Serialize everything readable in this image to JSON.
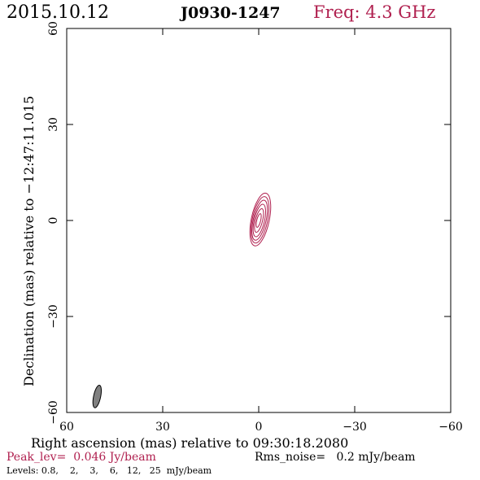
{
  "header": {
    "date": "2015.10.12",
    "source": "J0930-1247",
    "freq": "Freq: 4.3 GHz"
  },
  "colors": {
    "accent": "#b0204f",
    "axis": "#000000",
    "beam_fill": "#808080"
  },
  "chart_data": {
    "type": "contour",
    "xlabel": "Right ascension (mas) relative to 09:30:18.2080",
    "ylabel": "Declination (mas) relative to −12:47:11.015",
    "xlim": [
      60,
      -60
    ],
    "ylim": [
      -60,
      60
    ],
    "x_ticks": [
      60,
      30,
      0,
      -30,
      -60
    ],
    "y_ticks": [
      -60,
      -30,
      0,
      30,
      60
    ],
    "x_tick_labels": [
      "60",
      "30",
      "0",
      "−30",
      "−60"
    ],
    "y_tick_labels": [
      "−60",
      "−30",
      "0",
      "30",
      "60"
    ],
    "grid": false,
    "contour_levels_mJy": [
      0.8,
      2,
      3,
      6,
      12,
      25
    ],
    "contours": [
      {
        "level": 0.8,
        "cx": -0.5,
        "cy": 0.3,
        "rx": 2.8,
        "ry": 8.4,
        "angle_deg": -12
      },
      {
        "level": 2,
        "cx": -0.4,
        "cy": 0.2,
        "rx": 2.4,
        "ry": 7.4,
        "angle_deg": -12
      },
      {
        "level": 3,
        "cx": -0.3,
        "cy": 0.1,
        "rx": 2.0,
        "ry": 6.4,
        "angle_deg": -13
      },
      {
        "level": 6,
        "cx": -0.2,
        "cy": 0.0,
        "rx": 1.6,
        "ry": 5.2,
        "angle_deg": -13
      },
      {
        "level": 12,
        "cx": -0.1,
        "cy": 0.0,
        "rx": 1.1,
        "ry": 3.8,
        "angle_deg": -14
      },
      {
        "level": 25,
        "cx": 0.0,
        "cy": 0.0,
        "rx": 0.6,
        "ry": 2.2,
        "angle_deg": -14
      }
    ],
    "beam": {
      "cx": 50.5,
      "cy": -55.0,
      "rx": 1.1,
      "ry": 3.6,
      "angle_deg": -12
    }
  },
  "footer": {
    "peak": "Peak_lev=  0.046 Jy/beam",
    "rms": "Rms_noise=   0.2 mJy/beam",
    "levels": "Levels: 0.8,    2,    3,    6,   12,   25  mJy/beam"
  }
}
